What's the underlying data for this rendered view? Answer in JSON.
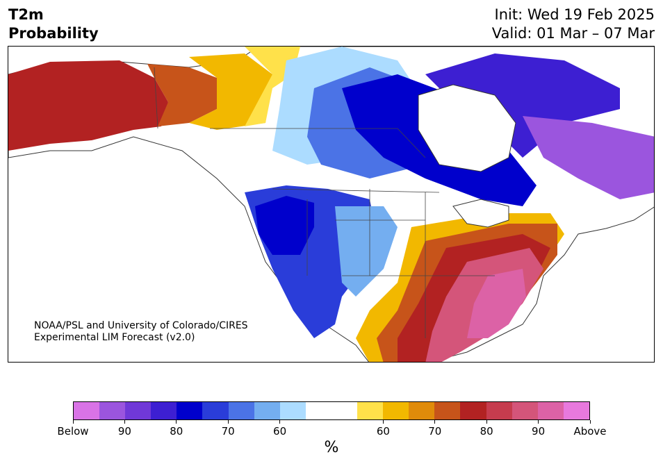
{
  "title": {
    "left_line1": "T2m",
    "left_line2": "Probability",
    "right_line1": "Init: Wed 19 Feb 2025",
    "right_line2": "Valid: 01 Mar – 07 Mar"
  },
  "credit": {
    "line1": "NOAA/PSL and University of Colorado/CIRES",
    "line2": "Experimental LIM Forecast (v2.0)"
  },
  "colorbar": {
    "unit": "%",
    "colors": [
      "#d973e6",
      "#9b55de",
      "#7038d8",
      "#3d1fd2",
      "#0000cc",
      "#2a3dd9",
      "#4b73e6",
      "#74aef0",
      "#acdcff",
      "#ffffff",
      "#ffffff",
      "#ffe14a",
      "#f2b800",
      "#e08b0a",
      "#c7541a",
      "#b22222",
      "#c63c4e",
      "#d4557a",
      "#dc62a6",
      "#e879dd"
    ],
    "ticks": [
      {
        "label": "Below",
        "index": 0
      },
      {
        "label": "90",
        "index": 2
      },
      {
        "label": "80",
        "index": 4
      },
      {
        "label": "70",
        "index": 6
      },
      {
        "label": "60",
        "index": 8
      },
      {
        "label": "60",
        "index": 12
      },
      {
        "label": "70",
        "index": 14
      },
      {
        "label": "80",
        "index": 16
      },
      {
        "label": "90",
        "index": 18
      },
      {
        "label": "Above",
        "index": 20
      }
    ]
  }
}
